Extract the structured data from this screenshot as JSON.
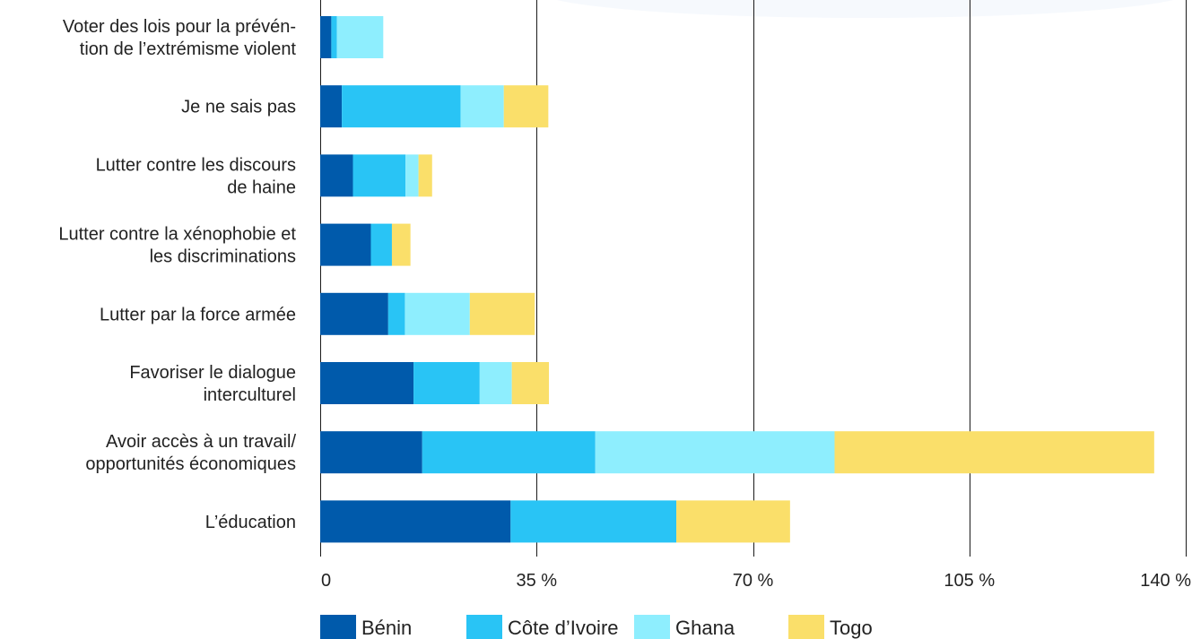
{
  "chart_data": {
    "type": "bar",
    "orientation": "horizontal",
    "stacked": true,
    "categories": [
      [
        "Voter des lois pour la prévén-",
        "tion de l’extrémisme violent"
      ],
      [
        "Je ne sais pas"
      ],
      [
        "Lutter contre les discours",
        "de haine"
      ],
      [
        "Lutter contre la xénophobie et",
        "les discriminations"
      ],
      [
        "Lutter par la force armée"
      ],
      [
        "Favoriser le dialogue",
        "interculturel"
      ],
      [
        "Avoir accès à un travail/",
        "opportunités économiques"
      ],
      [
        "L’éducation"
      ]
    ],
    "series": [
      {
        "name": "Bénin",
        "color": "#005aab",
        "values": [
          1.8,
          3.5,
          5.3,
          8.2,
          11.0,
          15.1,
          16.5,
          30.8
        ]
      },
      {
        "name": "Côte d’Ivoire",
        "color": "#29c4f5",
        "values": [
          0.9,
          19.2,
          8.5,
          3.4,
          2.7,
          10.7,
          28.0,
          26.8
        ]
      },
      {
        "name": "Ghana",
        "color": "#8eeefe",
        "values": [
          7.5,
          7.0,
          2.1,
          0.0,
          10.5,
          5.2,
          38.7,
          0.0
        ]
      },
      {
        "name": "Togo",
        "color": "#fadf6a",
        "values": [
          0.0,
          7.2,
          2.2,
          3.0,
          10.5,
          6.0,
          51.7,
          18.4
        ]
      }
    ],
    "xlim": [
      0,
      140
    ],
    "xticks": [
      0,
      35,
      70,
      105,
      140
    ],
    "xtick_labels": [
      "0",
      "35 %",
      "70 %",
      "105 %",
      "140 %"
    ],
    "grid": true,
    "legend_position": "bottom",
    "title": "",
    "xlabel": "",
    "ylabel": ""
  }
}
